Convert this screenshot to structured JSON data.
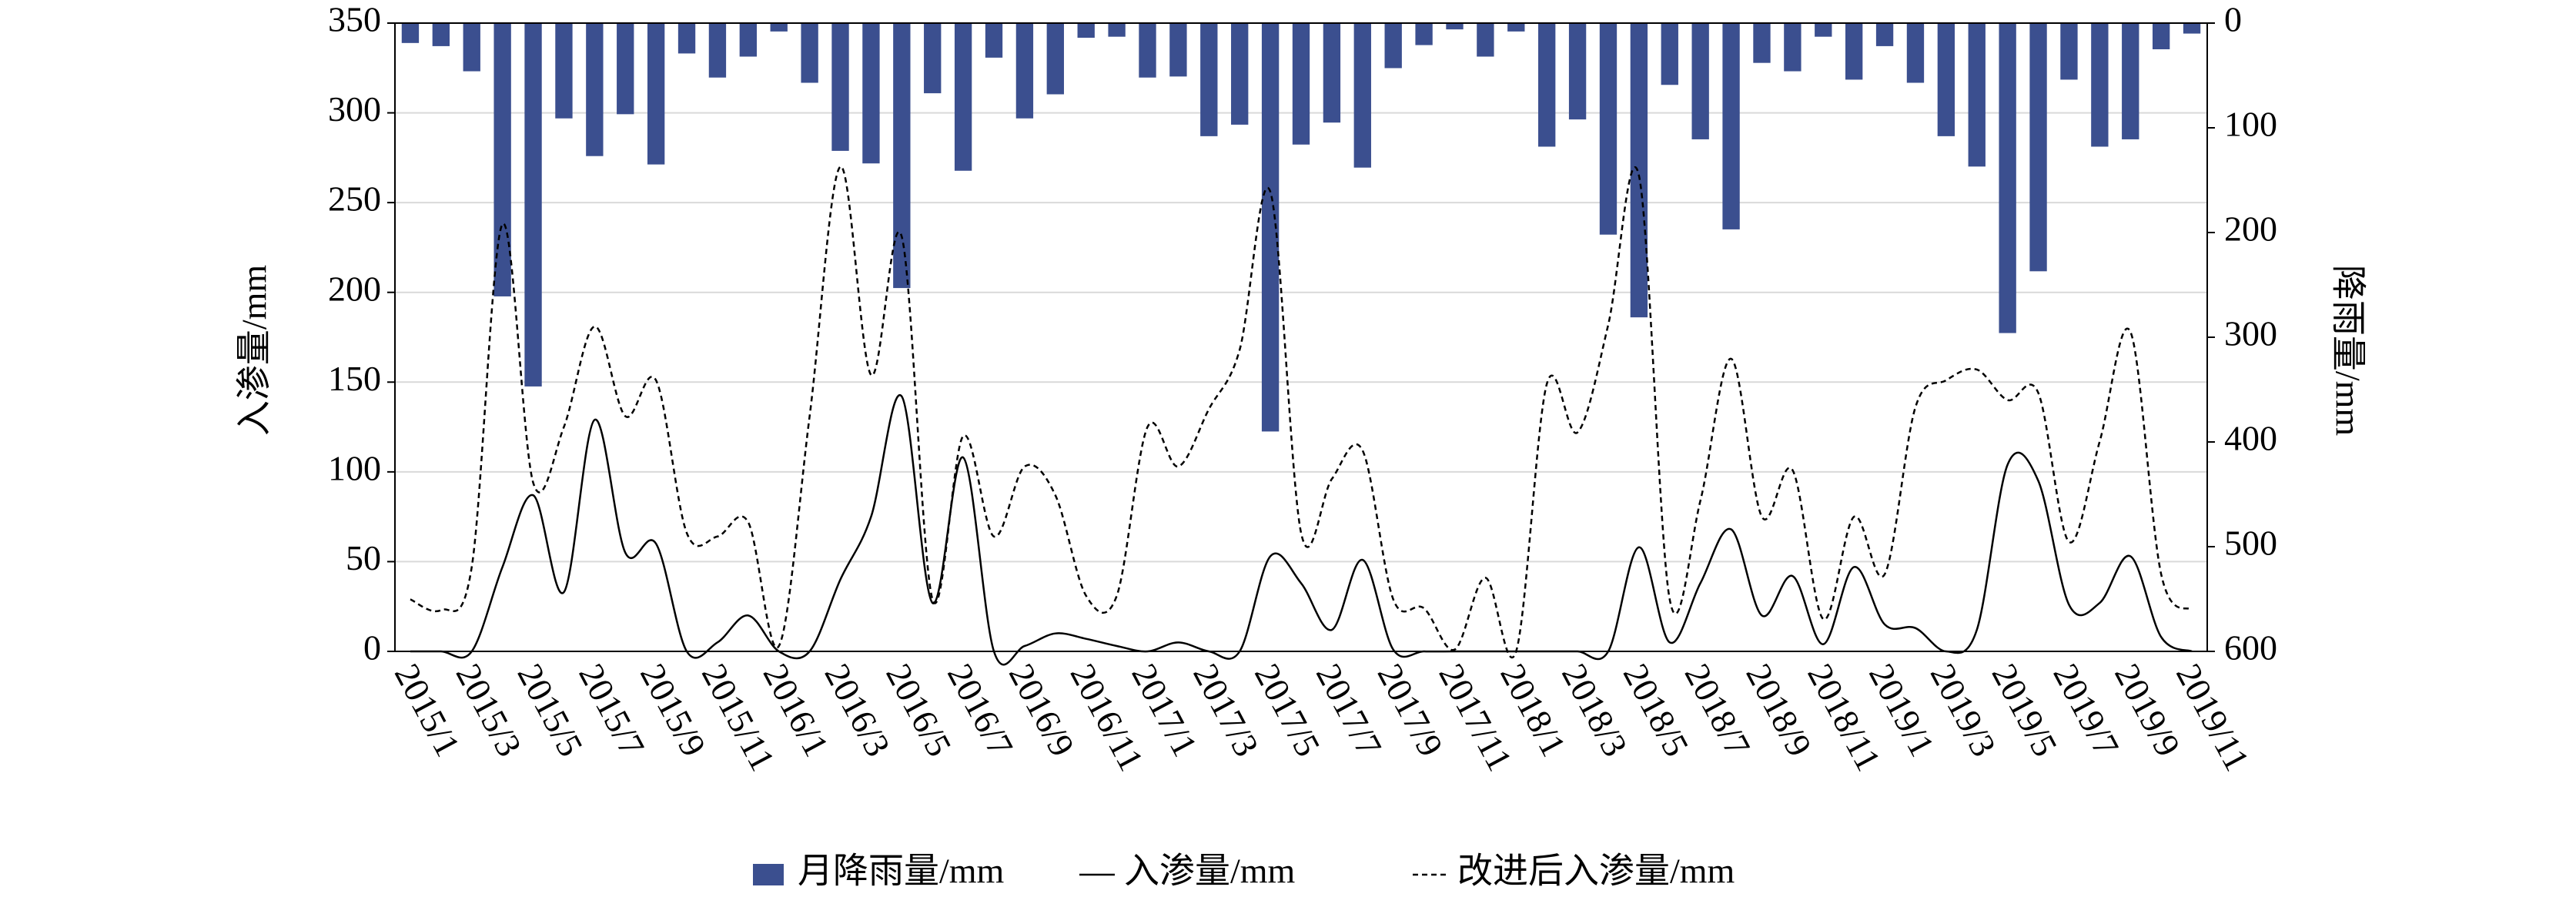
{
  "chart_data": {
    "type": "bar-line",
    "ylabel": "入渗量/mm",
    "y2label": "降雨量/mm",
    "categories": [
      "2015/1",
      null,
      "2015/3",
      null,
      "2015/5",
      null,
      "2015/7",
      null,
      "2015/9",
      null,
      "2015/11",
      null,
      "2016/1",
      null,
      "2016/3",
      null,
      "2016/5",
      null,
      "2016/7",
      null,
      "2016/9",
      null,
      "2016/11",
      null,
      "2017/1",
      null,
      "2017/3",
      null,
      "2017/5",
      null,
      "2017/7",
      null,
      "2017/9",
      null,
      "2017/11",
      null,
      "2018/1",
      null,
      "2018/3",
      null,
      "2018/5",
      null,
      "2018/7",
      null,
      "2018/9",
      null,
      "2018/11",
      null,
      "2019/1",
      null,
      "2019/3",
      null,
      "2019/5",
      null,
      "2019/7",
      null,
      "2019/9",
      null,
      "2019/11"
    ],
    "series": [
      {
        "name": "月降雨量/mm",
        "type": "bar",
        "axis": "y2",
        "color": "#3b4f8f",
        "values": [
          19,
          22,
          46,
          261,
          347,
          91,
          127,
          87,
          135,
          29,
          52,
          32,
          8,
          57,
          122,
          134,
          253,
          67,
          141,
          33,
          91,
          68,
          14,
          13,
          52,
          51,
          108,
          97,
          390,
          116,
          95,
          138,
          43,
          21,
          6,
          32,
          8,
          118,
          92,
          202,
          281,
          59,
          111,
          197,
          38,
          46,
          13,
          54,
          22,
          57,
          108,
          137,
          296,
          237,
          54,
          118,
          111,
          25,
          10
        ]
      },
      {
        "name": "入渗量/mm",
        "type": "line",
        "style": "solid",
        "color": "#000000",
        "values": [
          0,
          0,
          0,
          47,
          87,
          33,
          129,
          55,
          60,
          0,
          5,
          20,
          0,
          0,
          40,
          75,
          142,
          27,
          108,
          0,
          3,
          10,
          7,
          3,
          0,
          5,
          0,
          0,
          53,
          38,
          12,
          51,
          1,
          0,
          0,
          0,
          0,
          0,
          0,
          0,
          58,
          5,
          38,
          68,
          20,
          42,
          4,
          47,
          15,
          13,
          0,
          12,
          104,
          95,
          26,
          27,
          53,
          8,
          0
        ]
      },
      {
        "name": "改进后入渗量/mm",
        "type": "line",
        "style": "dashed",
        "color": "#000000",
        "values": [
          29,
          23,
          47,
          238,
          94,
          125,
          181,
          131,
          151,
          66,
          64,
          72,
          3,
          131,
          270,
          154,
          231,
          29,
          120,
          64,
          103,
          87,
          31,
          31,
          125,
          103,
          135,
          168,
          256,
          66,
          96,
          112,
          29,
          24,
          1,
          41,
          0,
          149,
          122,
          182,
          265,
          29,
          84,
          163,
          75,
          101,
          18,
          75,
          43,
          136,
          151,
          157,
          140,
          144,
          61,
          117,
          178,
          43,
          23
        ]
      }
    ],
    "ylim": [
      0,
      350
    ],
    "yticks": [
      0,
      50,
      100,
      150,
      200,
      250,
      300,
      350
    ],
    "y2lim": [
      0,
      600
    ],
    "y2ticks": [
      0,
      100,
      200,
      300,
      400,
      500,
      600
    ],
    "y2_inverted": true,
    "grid": true,
    "legend": "bottom"
  }
}
